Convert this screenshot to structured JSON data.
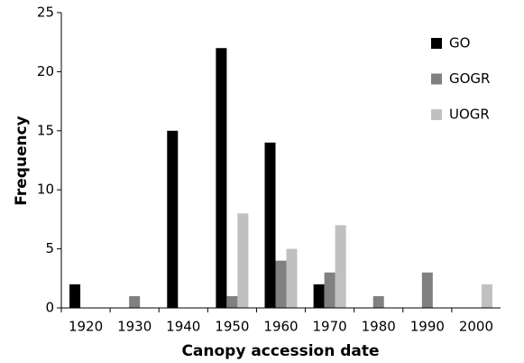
{
  "chart_data": {
    "type": "bar",
    "x_label": "Canopy accession date",
    "y_label": "Frequency",
    "categories": [
      "1920",
      "1930",
      "1940",
      "1950",
      "1960",
      "1970",
      "1980",
      "1990",
      "2000"
    ],
    "series": [
      {
        "name": "GO",
        "color": "#000000",
        "values": [
          2,
          0,
          15,
          22,
          14,
          2,
          0,
          0,
          0
        ]
      },
      {
        "name": "GOGR",
        "color": "#808080",
        "values": [
          0,
          1,
          0,
          1,
          4,
          3,
          1,
          3,
          0
        ]
      },
      {
        "name": "UOGR",
        "color": "#c0c0c0",
        "values": [
          0,
          0,
          0,
          8,
          5,
          7,
          0,
          0,
          2
        ]
      }
    ],
    "ylim": [
      0,
      25
    ],
    "yticks": [
      0,
      5,
      10,
      15,
      20,
      25
    ],
    "grid": false,
    "legend": "top-right"
  }
}
